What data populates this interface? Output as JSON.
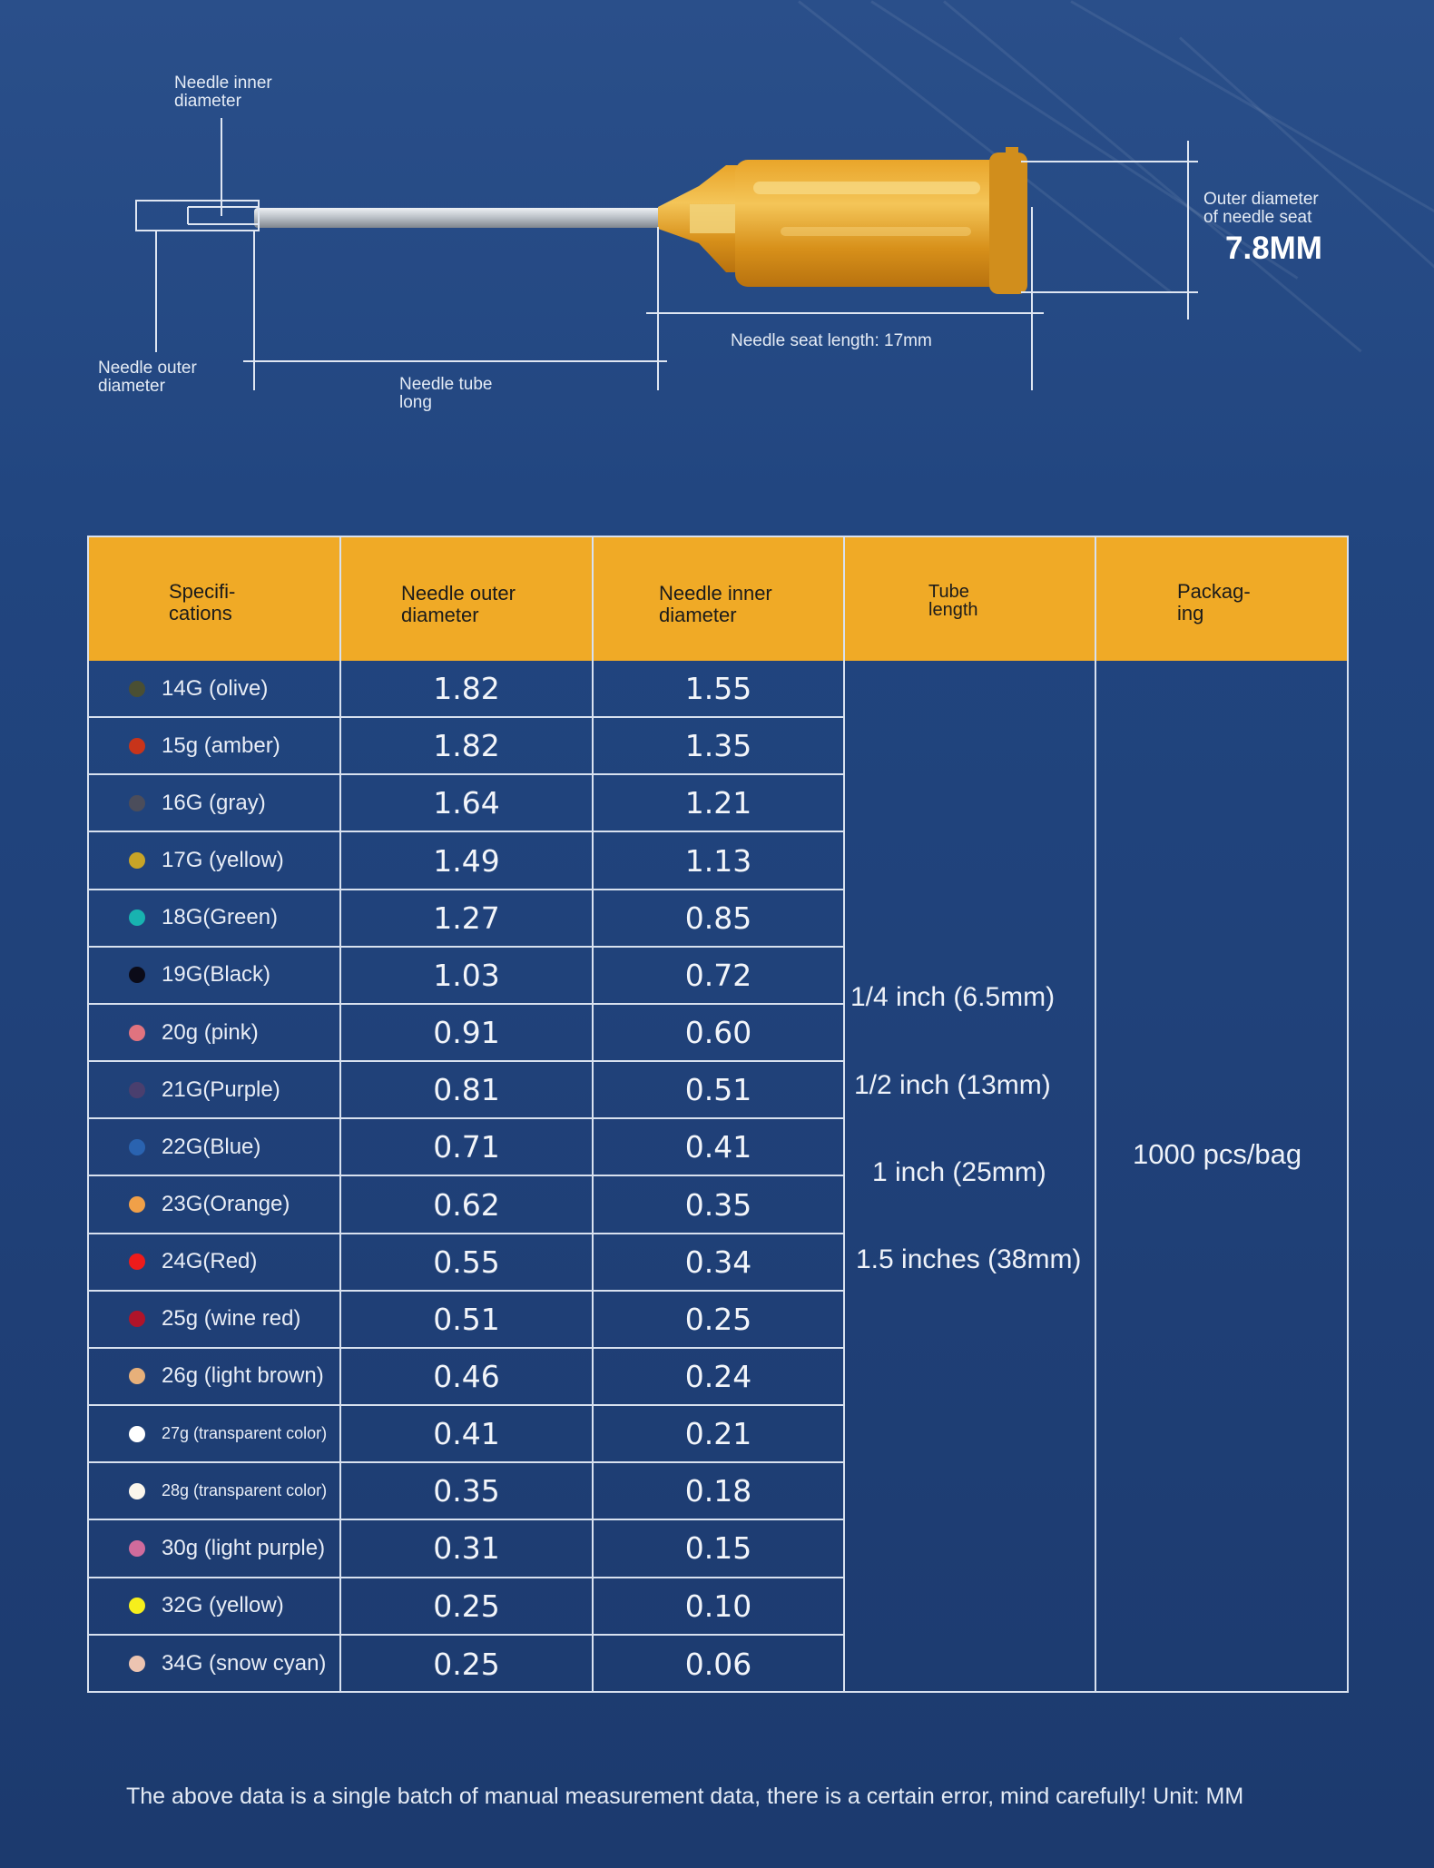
{
  "diagram": {
    "inner_label": "Needle inner\ndiameter",
    "outer_label": "Needle outer\ndiameter",
    "tube_label": "Needle tube\nlong",
    "seat_length_label": "Needle seat length: 17mm",
    "seat_outer_label": "Outer diameter\nof needle seat",
    "seat_outer_value": "7.8MM"
  },
  "table": {
    "headers": [
      "Specifi-\ncations",
      "Needle outer\ndiameter",
      "Needle inner\ndiameter",
      "Tube\nlength",
      "Packag-\ning"
    ],
    "rows": [
      {
        "spec": "14G (olive)",
        "color": "#4a4f33",
        "outer": "1.82",
        "inner": "1.55"
      },
      {
        "spec": "15g (amber)",
        "color": "#c8341a",
        "outer": "1.82",
        "inner": "1.35"
      },
      {
        "spec": "16G (gray)",
        "color": "#4b4d5b",
        "outer": "1.64",
        "inner": "1.21"
      },
      {
        "spec": "17G (yellow)",
        "color": "#c7a427",
        "outer": "1.49",
        "inner": "1.13"
      },
      {
        "spec": "18G(Green)",
        "color": "#18b3b0",
        "outer": "1.27",
        "inner": "0.85"
      },
      {
        "spec": "19G(Black)",
        "color": "#0b0b18",
        "outer": "1.03",
        "inner": "0.72"
      },
      {
        "spec": "20g (pink)",
        "color": "#e0737f",
        "outer": "0.91",
        "inner": "0.60"
      },
      {
        "spec": "21G(Purple)",
        "color": "#4a3f6e",
        "outer": "0.81",
        "inner": "0.51"
      },
      {
        "spec": "22G(Blue)",
        "color": "#2a63b0",
        "outer": "0.71",
        "inner": "0.41"
      },
      {
        "spec": "23G(Orange)",
        "color": "#f0a048",
        "outer": "0.62",
        "inner": "0.35"
      },
      {
        "spec": "24G(Red)",
        "color": "#ee1b1b",
        "outer": "0.55",
        "inner": "0.34"
      },
      {
        "spec": "25g (wine red)",
        "color": "#b0142a",
        "outer": "0.51",
        "inner": "0.25"
      },
      {
        "spec": "26g (light brown)",
        "color": "#e7b07a",
        "outer": "0.46",
        "inner": "0.24"
      },
      {
        "spec": "27g (transparent color)",
        "color": "#ffffff",
        "outer": "0.41",
        "inner": "0.21"
      },
      {
        "spec": "28g (transparent color)",
        "color": "#fbf6ec",
        "outer": "0.35",
        "inner": "0.18"
      },
      {
        "spec": "30g (light purple)",
        "color": "#d06b9c",
        "outer": "0.31",
        "inner": "0.15"
      },
      {
        "spec": "32G (yellow)",
        "color": "#f6ef1c",
        "outer": "0.25",
        "inner": "0.10"
      },
      {
        "spec": "34G (snow cyan)",
        "color": "#ecc4b1",
        "outer": "0.25",
        "inner": "0.06"
      }
    ],
    "tube_lengths": [
      "1/4 inch (6.5mm)",
      "1/2 inch (13mm)",
      "1 inch (25mm)",
      "1.5 inches (38mm)"
    ],
    "packaging": "1000 pcs/bag"
  },
  "footer_note": "The above data is a single batch of manual measurement data, there is a certain error, mind carefully! Unit: MM"
}
